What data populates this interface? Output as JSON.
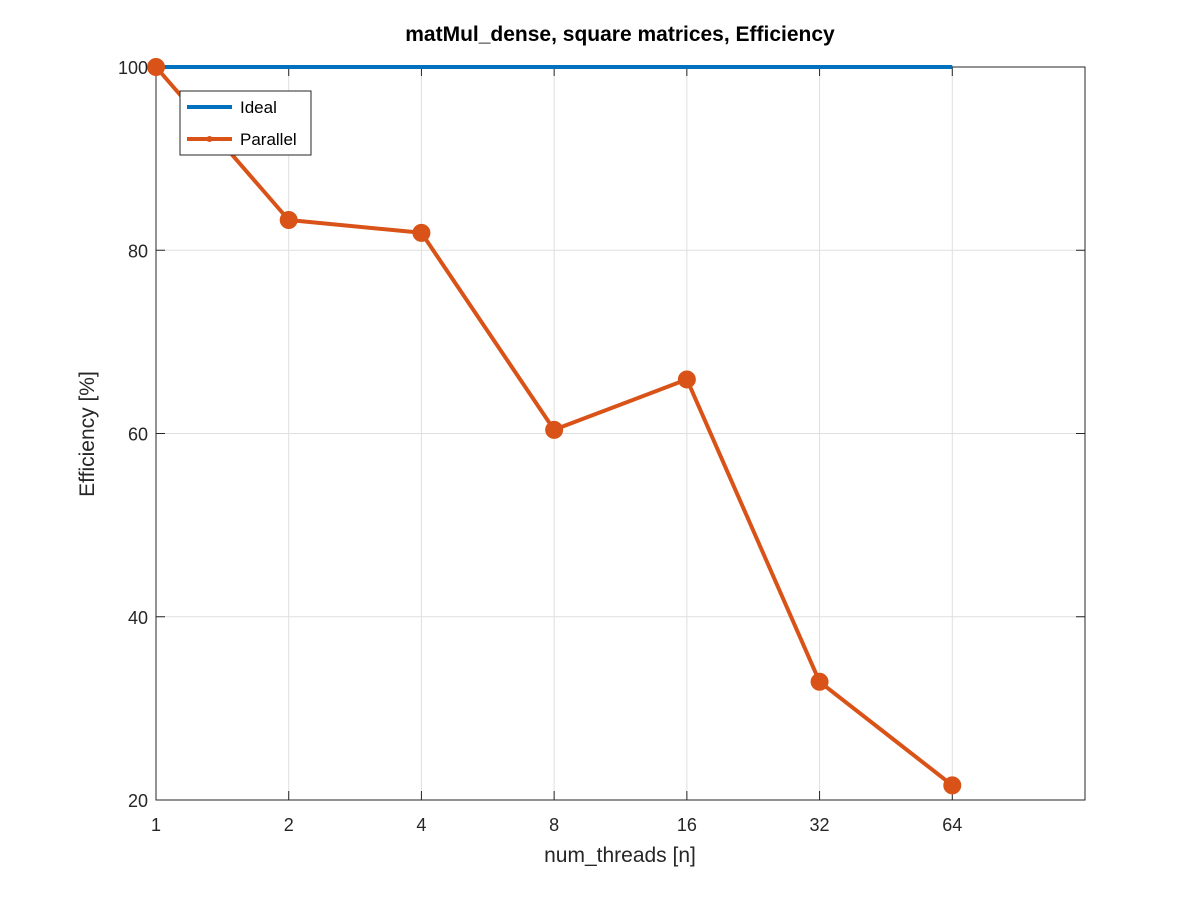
{
  "chart_data": {
    "type": "line",
    "title": "matMul_dense, square matrices, Efficiency",
    "xlabel": "num_threads [n]",
    "ylabel": "Efficiency [%]",
    "x_scale": "log2",
    "x": [
      1,
      2,
      4,
      8,
      16,
      32,
      64
    ],
    "x_tick_labels": [
      "1",
      "2",
      "4",
      "8",
      "16",
      "32",
      "64"
    ],
    "xlim": [
      1,
      128
    ],
    "ylim": [
      20,
      100
    ],
    "y_ticks": [
      20,
      40,
      60,
      80,
      100
    ],
    "y_tick_labels": [
      "20",
      "40",
      "60",
      "80",
      "100"
    ],
    "grid": true,
    "legend_position": "top-left",
    "series": [
      {
        "name": "Ideal",
        "color": "#0072BD",
        "marker": "none",
        "values": [
          100,
          100,
          100,
          100,
          100,
          100,
          100
        ]
      },
      {
        "name": "Parallel",
        "color": "#D95319",
        "marker": "circle",
        "values": [
          100,
          83.3,
          81.9,
          60.4,
          65.9,
          32.9,
          21.6
        ]
      }
    ]
  }
}
